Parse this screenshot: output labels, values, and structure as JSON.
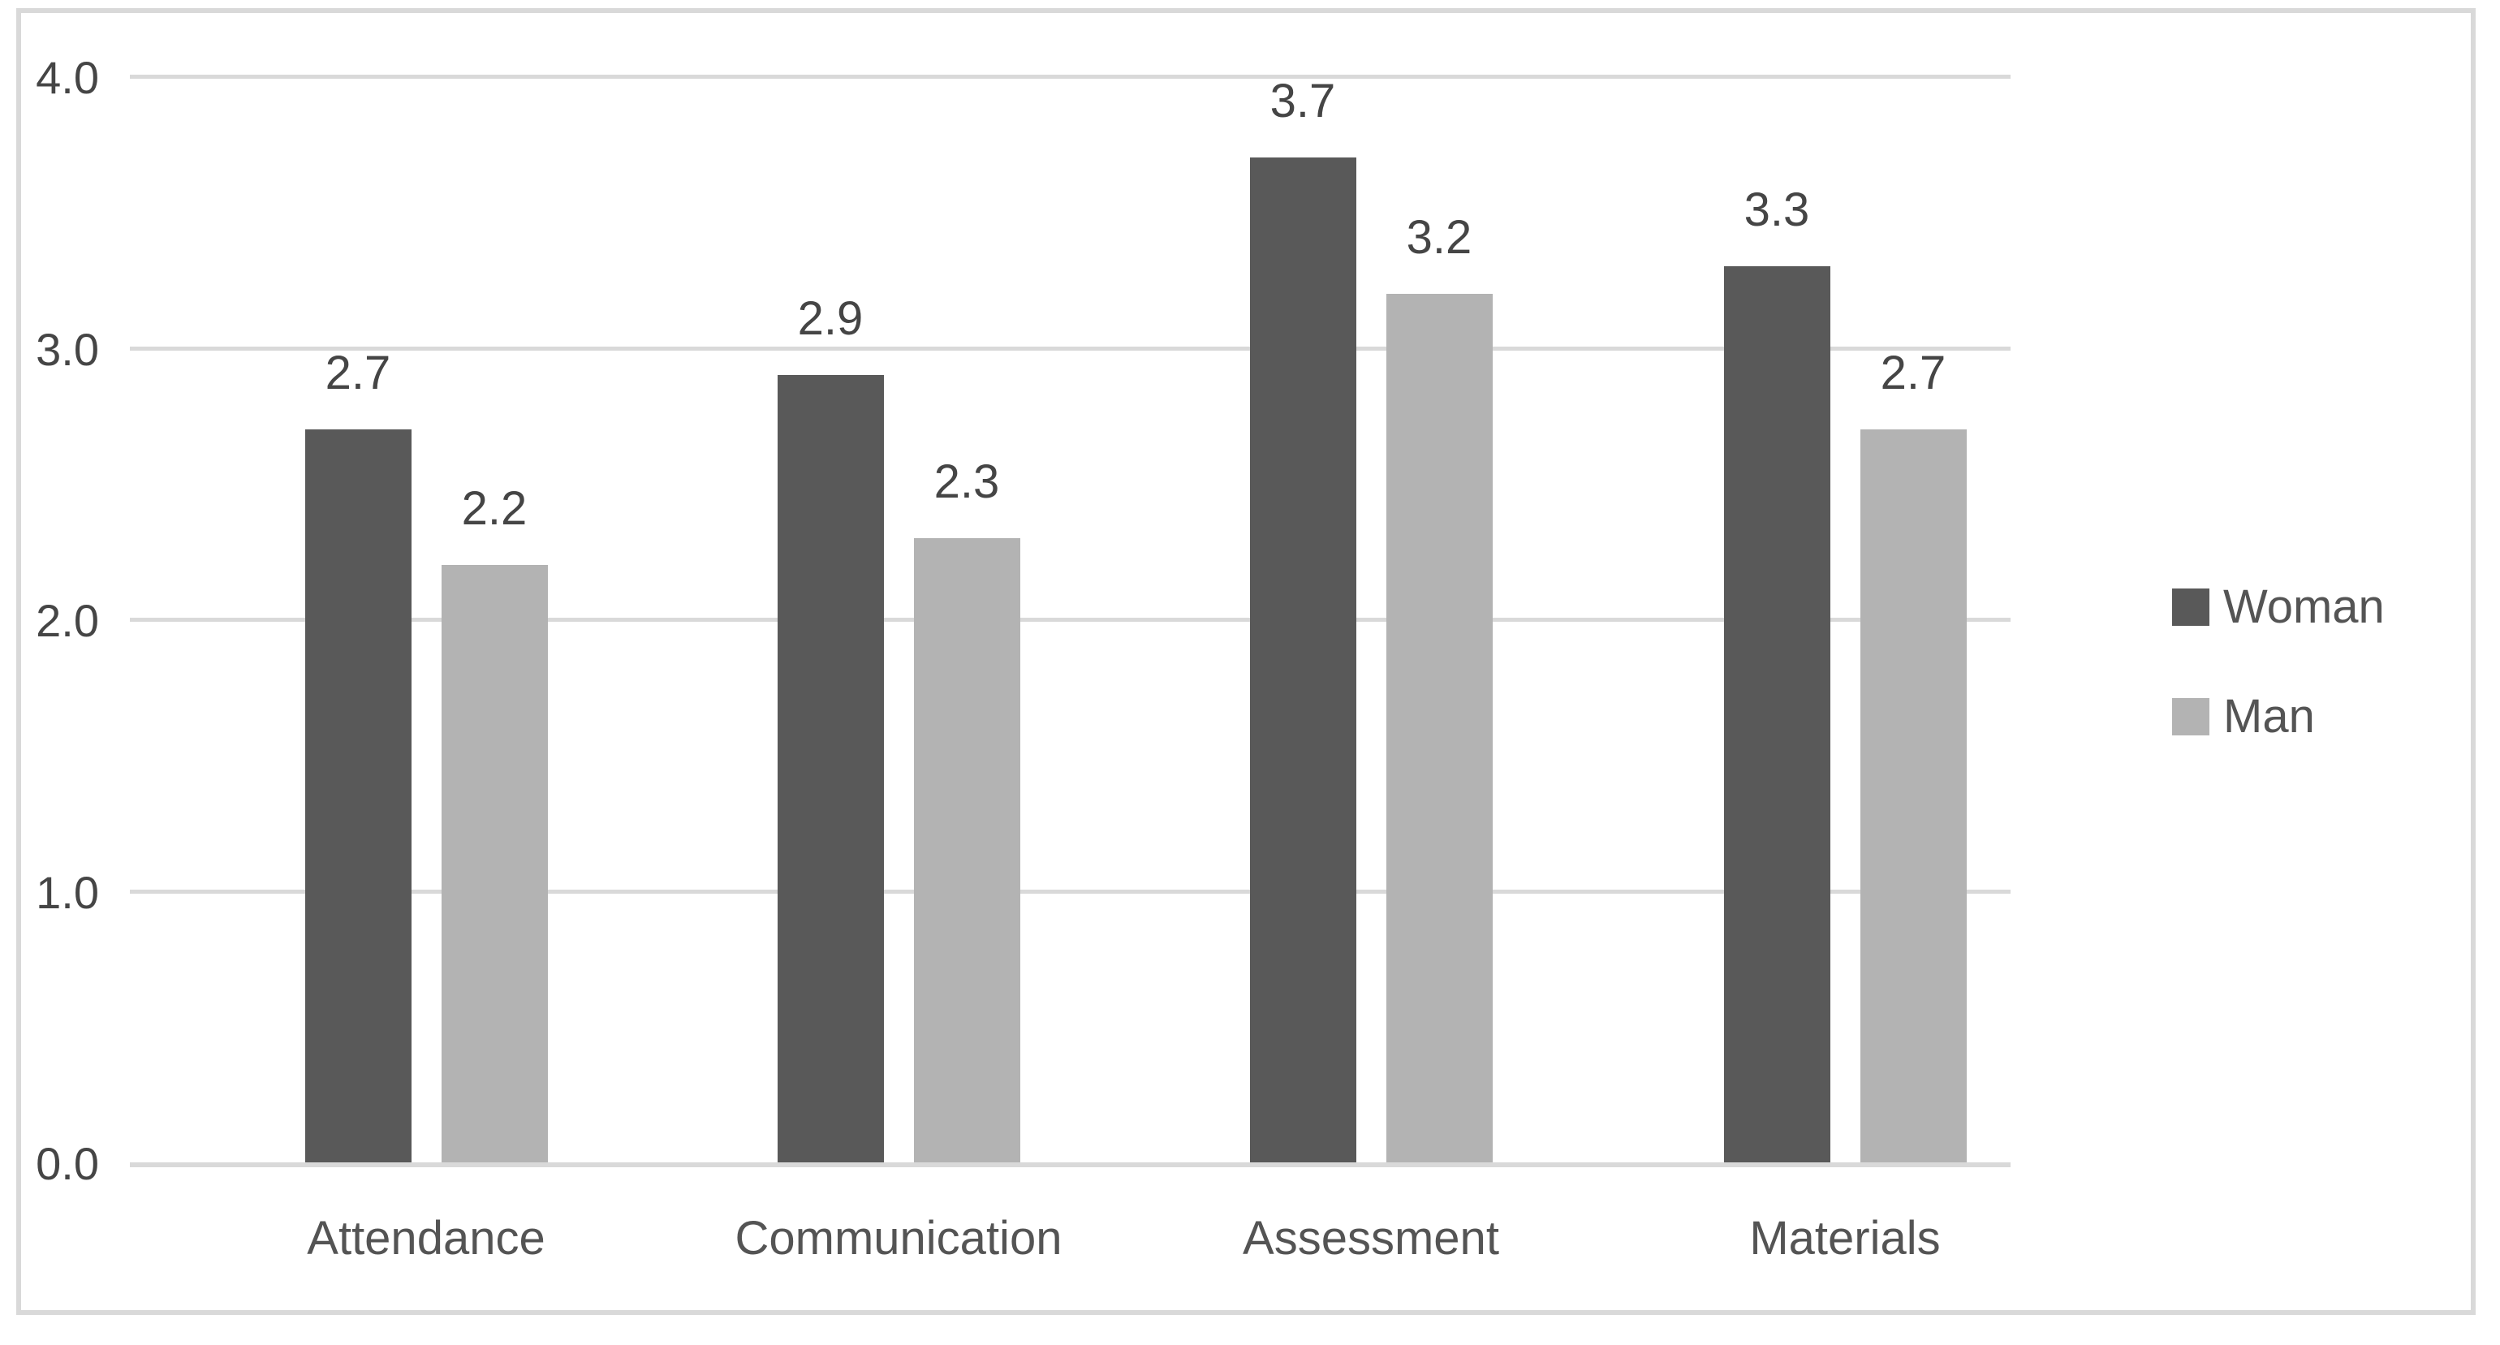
{
  "chart_data": {
    "type": "bar",
    "title": "",
    "xlabel": "",
    "ylabel": "",
    "categories": [
      "Attendance",
      "Communication",
      "Assessment",
      "Materials"
    ],
    "series": [
      {
        "name": "Woman",
        "color": "#595959",
        "values": [
          2.7,
          2.9,
          3.7,
          3.3
        ]
      },
      {
        "name": "Man",
        "color": "#b3b3b3",
        "values": [
          2.2,
          2.3,
          3.2,
          2.7
        ]
      }
    ],
    "data_labels": [
      "2.7",
      "2.2",
      "2.9",
      "2.3",
      "3.7",
      "3.2",
      "3.3",
      "2.7"
    ],
    "ylim": [
      0.0,
      4.0
    ],
    "yticks": [
      "0.0",
      "1.0",
      "2.0",
      "3.0",
      "4.0"
    ],
    "grid": "horizontal",
    "legend_position": "right",
    "colors": {
      "gridline": "#d9d9d9",
      "frame_border": "#d9d9d9",
      "tick_text": "#454545",
      "label_text": "#545454",
      "background": "#ffffff"
    }
  }
}
